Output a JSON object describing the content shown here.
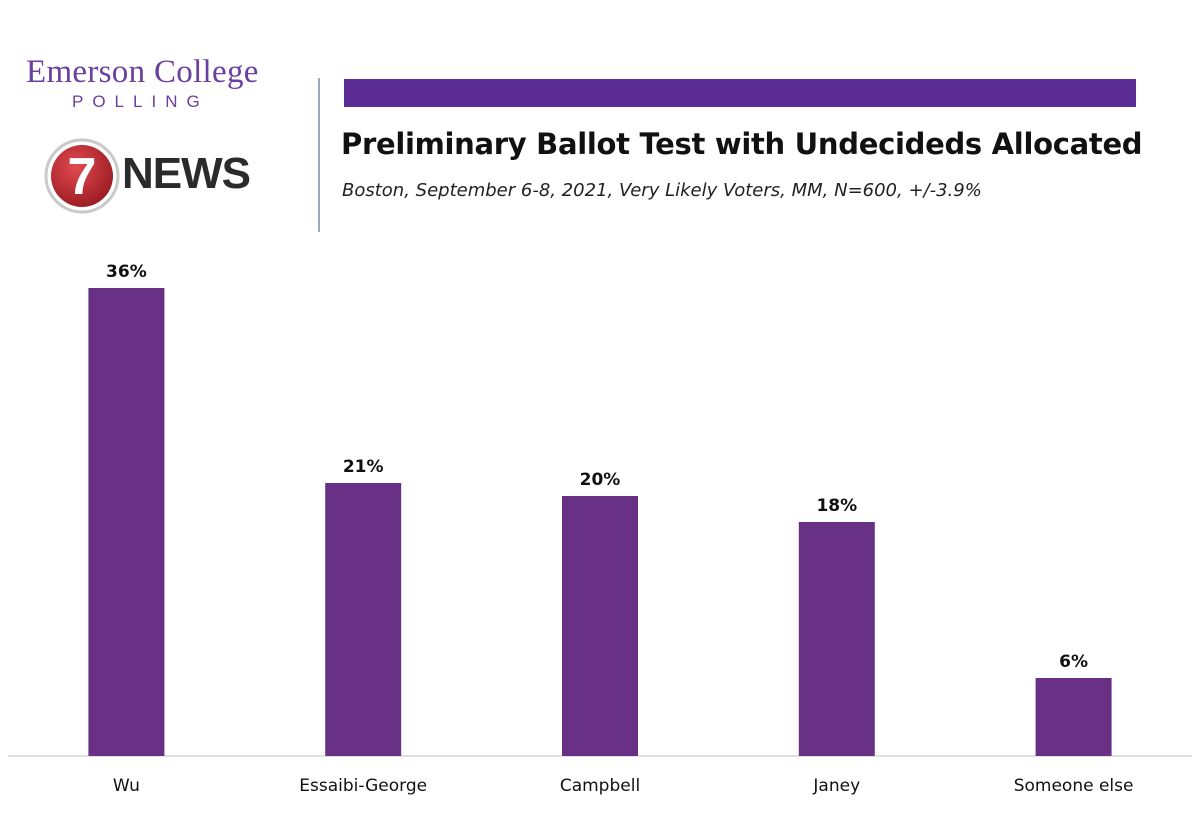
{
  "branding": {
    "emerson_name": "Emerson College",
    "emerson_sub": "POLLING",
    "news_mark": "NEWS",
    "news_number": "7"
  },
  "colors": {
    "bar": "#693185",
    "top_bar": "#5b2c94",
    "logo_purple": "#6b3fa0",
    "news_red": "#b8222a"
  },
  "chart_data": {
    "type": "bar",
    "title": "Preliminary Ballot Test with Undecideds Allocated",
    "subtitle": "Boston, September 6-8, 2021, Very Likely Voters, MM, N=600, +/-3.9%",
    "categories": [
      "Wu",
      "Essaibi-George",
      "Campbell",
      "Janey",
      "Someone else"
    ],
    "values": [
      36,
      21,
      20,
      18,
      6
    ],
    "value_labels": [
      "36%",
      "21%",
      "20%",
      "18%",
      "6%"
    ],
    "ylim": [
      0,
      36
    ],
    "grid": false,
    "legend": "none"
  }
}
